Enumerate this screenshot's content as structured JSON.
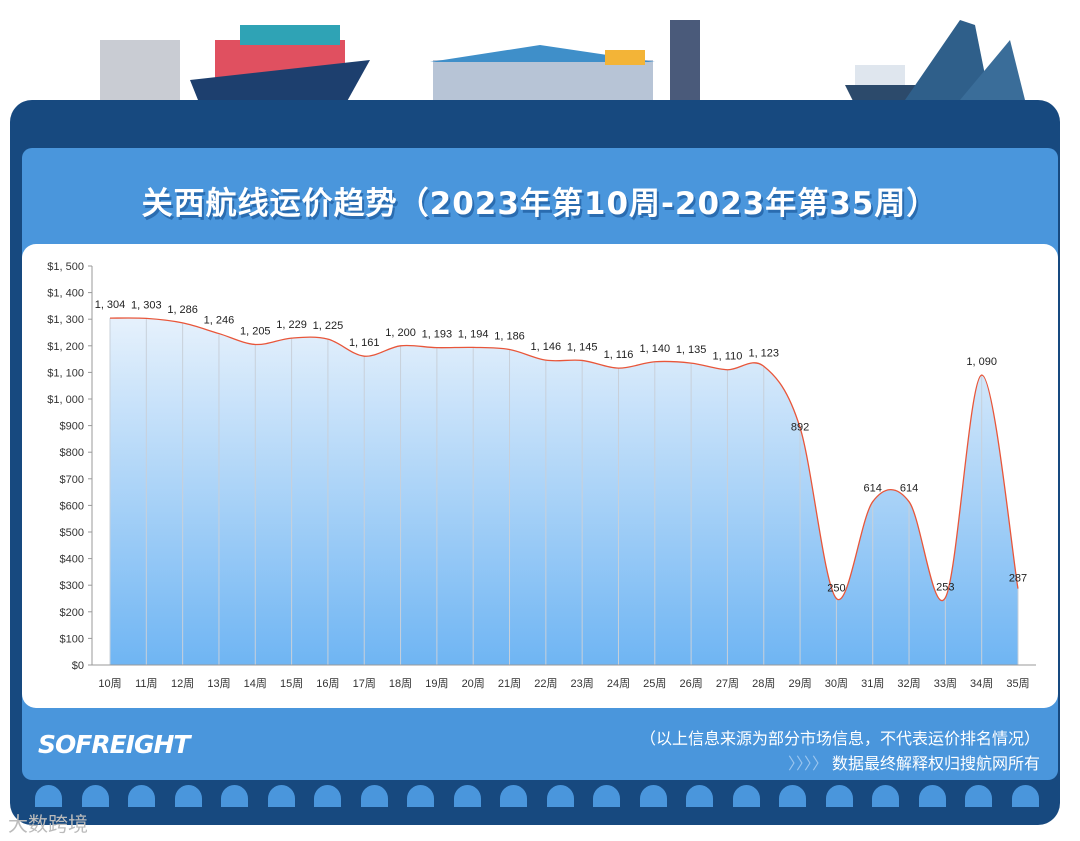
{
  "title": "关西航线运价趋势（2023年第10周-2023年第35周）",
  "footer": {
    "logo": "SOFREIGHT",
    "note": "（以上信息来源为部分市场信息，不代表运价排名情况）",
    "chevrons": "〉〉〉〉",
    "copyright": "数据最终解释权归搜航网所有",
    "watermark": "大数跨境"
  },
  "colors": {
    "line": "#e8563a",
    "area_top": "#e6f1fc",
    "area_bottom": "#6fb5f3",
    "frame": "#17497f",
    "panel_bg": "#4a96dc"
  },
  "chart_data": {
    "type": "area",
    "categories": [
      "10周",
      "11周",
      "12周",
      "13周",
      "14周",
      "15周",
      "16周",
      "17周",
      "18周",
      "19周",
      "20周",
      "21周",
      "22周",
      "23周",
      "24周",
      "25周",
      "26周",
      "27周",
      "28周",
      "29周",
      "30周",
      "31周",
      "32周",
      "33周",
      "34周",
      "35周"
    ],
    "values": [
      1304,
      1303,
      1286,
      1246,
      1205,
      1229,
      1225,
      1161,
      1200,
      1193,
      1194,
      1186,
      1146,
      1145,
      1116,
      1140,
      1135,
      1110,
      1123,
      892,
      250,
      614,
      614,
      253,
      1090,
      287
    ],
    "data_labels": [
      "1, 304",
      "1, 303",
      "1, 286",
      "1, 246",
      "1, 205",
      "1, 229",
      "1, 225",
      "1, 161",
      "1, 200",
      "1, 193",
      "1, 194",
      "1, 186",
      "1, 146",
      "1, 145",
      "1, 116",
      "1, 140",
      "1, 135",
      "1, 110",
      "1, 123",
      "892",
      "250",
      "614",
      "614",
      "253",
      "1, 090",
      "287"
    ],
    "yticks": [
      "$0",
      "$100",
      "$200",
      "$300",
      "$400",
      "$500",
      "$600",
      "$700",
      "$800",
      "$900",
      "$1, 000",
      "$1, 100",
      "$1, 200",
      "$1, 300",
      "$1, 400",
      "$1, 500"
    ],
    "ylim": [
      0,
      1500
    ],
    "grid": "vertical"
  }
}
